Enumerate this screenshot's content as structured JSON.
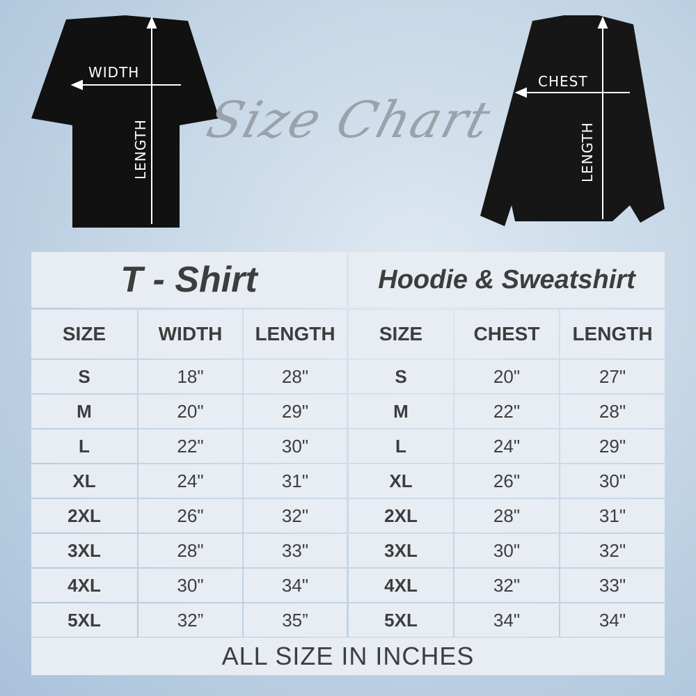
{
  "heading": "Size Chart",
  "tshirt_labels": {
    "width": "WIDTH",
    "length": "LENGTH"
  },
  "sweat_labels": {
    "chest": "CHEST",
    "length": "LENGTH"
  },
  "tshirt": {
    "title": "T - Shirt",
    "headers": [
      "SIZE",
      "WIDTH",
      "LENGTH"
    ],
    "rows": [
      [
        "S",
        "18\"",
        "28\""
      ],
      [
        "M",
        "20\"",
        "29\""
      ],
      [
        "L",
        "22\"",
        "30\""
      ],
      [
        "XL",
        "24\"",
        "31\""
      ],
      [
        "2XL",
        "26\"",
        "32\""
      ],
      [
        "3XL",
        "28\"",
        "33\""
      ],
      [
        "4XL",
        "30\"",
        "34\""
      ],
      [
        "5XL",
        "32”",
        "35”"
      ]
    ]
  },
  "hoodie": {
    "title": "Hoodie & Sweatshirt",
    "headers": [
      "SIZE",
      "CHEST",
      "LENGTH"
    ],
    "rows": [
      [
        "S",
        "20\"",
        "27\""
      ],
      [
        "M",
        "22\"",
        "28\""
      ],
      [
        "L",
        "24\"",
        "29\""
      ],
      [
        "XL",
        "26\"",
        "30\""
      ],
      [
        "2XL",
        "28\"",
        "31\""
      ],
      [
        "3XL",
        "30\"",
        "32\""
      ],
      [
        "4XL",
        "32\"",
        "33\""
      ],
      [
        "5XL",
        "34\"",
        "34\""
      ]
    ]
  },
  "footer": "ALL SIZE IN INCHES",
  "colors": {
    "cell": "#e7edf3",
    "text": "#3d3d3d",
    "border": "#c8d6e4"
  }
}
